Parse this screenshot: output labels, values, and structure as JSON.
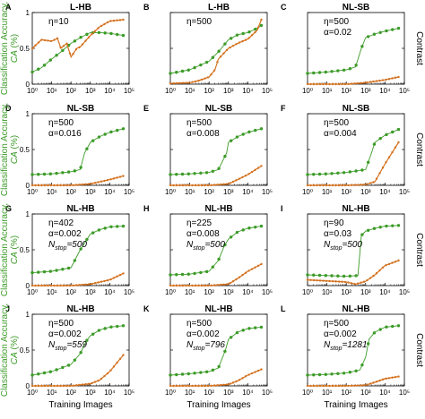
{
  "figure": {
    "ylabel_left_line1": "Classification Accuracy,",
    "ylabel_left_line2": "CA",
    "ylabel_left_unit": "(%)",
    "ylabel_right": "Contrast",
    "xlabel": "Training Images",
    "colors": {
      "accuracy": "#3c9b28",
      "contrast": "#d4711e",
      "ylabel_left": "#3c9b28"
    }
  },
  "chart_data": [
    {
      "panel": "A",
      "type": "line",
      "title": "L-HB",
      "params": [
        "η=10"
      ],
      "x_scale": "log",
      "xlim": [
        1,
        100000
      ],
      "ylim_left": [
        0,
        1
      ],
      "ylim_right": [
        0,
        1
      ],
      "x_ticks": [
        "10⁰",
        "10¹",
        "10²",
        "10³",
        "10⁴",
        "10⁵"
      ],
      "y_ticks": [
        "0",
        "0.5",
        "1"
      ],
      "series": [
        {
          "name": "CA",
          "x": [
            1,
            3,
            10,
            30,
            100,
            300,
            1000,
            3000,
            10000,
            50000
          ],
          "y": [
            0.17,
            0.23,
            0.35,
            0.45,
            0.57,
            0.65,
            0.72,
            0.72,
            0.71,
            0.68
          ]
        },
        {
          "name": "Contrast",
          "x": [
            1,
            3,
            10,
            20,
            30,
            60,
            100,
            200,
            300,
            1000,
            3000,
            10000,
            50000
          ],
          "y": [
            0.5,
            0.62,
            0.6,
            0.64,
            0.5,
            0.57,
            0.38,
            0.5,
            0.52,
            0.68,
            0.8,
            0.88,
            0.9
          ]
        }
      ]
    },
    {
      "panel": "B",
      "type": "line",
      "title": "L-HB",
      "params": [
        "η=500"
      ],
      "x_scale": "log",
      "xlim": [
        1,
        100000
      ],
      "ylim_left": [
        0,
        1
      ],
      "ylim_right": [
        0,
        1
      ],
      "x_ticks": [
        "10⁰",
        "10¹",
        "10²",
        "10³",
        "10⁴",
        "10⁵"
      ],
      "y_ticks": [],
      "series": [
        {
          "name": "CA",
          "x": [
            1,
            10,
            100,
            300,
            1000,
            3000,
            10000,
            30000,
            50000
          ],
          "y": [
            0.15,
            0.2,
            0.32,
            0.45,
            0.62,
            0.69,
            0.72,
            0.78,
            0.82
          ]
        },
        {
          "name": "Contrast",
          "x": [
            1,
            10,
            30,
            100,
            200,
            300,
            1000,
            3000,
            10000,
            30000,
            50000
          ],
          "y": [
            0.01,
            0.02,
            0.05,
            0.1,
            0.2,
            0.35,
            0.5,
            0.57,
            0.63,
            0.75,
            0.9
          ]
        }
      ]
    },
    {
      "panel": "C",
      "type": "line",
      "title": "NL-SB",
      "params": [
        "η=500",
        "α=0.02"
      ],
      "x_scale": "log",
      "xlim": [
        1,
        100000
      ],
      "ylim_left": [
        0,
        1
      ],
      "ylim_right": [
        0,
        1
      ],
      "x_ticks": [
        "10⁰",
        "10¹",
        "10²",
        "10³",
        "10⁴",
        "10⁵"
      ],
      "y_ticks": [],
      "series": [
        {
          "name": "CA",
          "x": [
            1,
            10,
            100,
            300,
            600,
            1000,
            3000,
            10000,
            50000
          ],
          "y": [
            0.15,
            0.17,
            0.2,
            0.24,
            0.5,
            0.65,
            0.7,
            0.74,
            0.78
          ]
        },
        {
          "name": "Contrast",
          "x": [
            1,
            100,
            1000,
            10000,
            50000
          ],
          "y": [
            0.0,
            0.0,
            0.02,
            0.06,
            0.1
          ]
        }
      ]
    },
    {
      "panel": "D",
      "type": "line",
      "title": "NL-SB",
      "params": [
        "η=500",
        "α=0.016"
      ],
      "x_scale": "log",
      "xlim": [
        1,
        100000
      ],
      "ylim_left": [
        0,
        1
      ],
      "ylim_right": [
        0,
        1
      ],
      "x_ticks": [
        "10⁰",
        "10¹",
        "10²",
        "10³",
        "10⁴",
        "10⁵"
      ],
      "y_ticks": [
        "0",
        "0.5",
        "1"
      ],
      "series": [
        {
          "name": "CA",
          "x": [
            1,
            10,
            100,
            300,
            500,
            1000,
            3000,
            10000,
            50000
          ],
          "y": [
            0.15,
            0.16,
            0.19,
            0.22,
            0.45,
            0.6,
            0.68,
            0.74,
            0.79
          ]
        },
        {
          "name": "Contrast",
          "x": [
            1,
            100,
            1000,
            10000,
            50000
          ],
          "y": [
            0.0,
            0.0,
            0.02,
            0.08,
            0.13
          ]
        }
      ]
    },
    {
      "panel": "E",
      "type": "line",
      "title": "NL-SB",
      "params": [
        "η=500",
        "α=0.008"
      ],
      "x_scale": "log",
      "xlim": [
        1,
        100000
      ],
      "ylim_left": [
        0,
        1
      ],
      "ylim_right": [
        0,
        1
      ],
      "x_ticks": [
        "10⁰",
        "10¹",
        "10²",
        "10³",
        "10⁴",
        "10⁵"
      ],
      "y_ticks": [],
      "series": [
        {
          "name": "CA",
          "x": [
            1,
            10,
            100,
            300,
            800,
            1000,
            3000,
            10000,
            50000
          ],
          "y": [
            0.15,
            0.16,
            0.18,
            0.22,
            0.45,
            0.6,
            0.68,
            0.74,
            0.79
          ]
        },
        {
          "name": "Contrast",
          "x": [
            1,
            100,
            1000,
            3000,
            10000,
            50000
          ],
          "y": [
            0.0,
            0.0,
            0.02,
            0.08,
            0.15,
            0.27
          ]
        }
      ]
    },
    {
      "panel": "F",
      "type": "line",
      "title": "NL-SB",
      "params": [
        "η=500",
        "α=0.004"
      ],
      "x_scale": "log",
      "xlim": [
        1,
        100000
      ],
      "ylim_left": [
        0,
        1
      ],
      "ylim_right": [
        0,
        1
      ],
      "x_ticks": [
        "10⁰",
        "10¹",
        "10²",
        "10³",
        "10⁴",
        "10⁵"
      ],
      "y_ticks": [],
      "series": [
        {
          "name": "CA",
          "x": [
            1,
            10,
            100,
            1000,
            2000,
            3000,
            10000,
            50000
          ],
          "y": [
            0.15,
            0.16,
            0.18,
            0.22,
            0.45,
            0.6,
            0.7,
            0.78
          ]
        },
        {
          "name": "Contrast",
          "x": [
            1,
            100,
            1000,
            3000,
            10000,
            50000
          ],
          "y": [
            0.0,
            0.0,
            0.01,
            0.05,
            0.3,
            0.6
          ]
        }
      ]
    },
    {
      "panel": "G",
      "type": "line",
      "title": "NL-HB",
      "params": [
        "η=402",
        "α=0.002",
        "N_stop=500"
      ],
      "x_scale": "log",
      "xlim": [
        1,
        100000
      ],
      "ylim_left": [
        0,
        1
      ],
      "ylim_right": [
        0,
        1
      ],
      "x_ticks": [
        "10⁰",
        "10¹",
        "10²",
        "10³",
        "10⁴",
        "10⁵"
      ],
      "y_ticks": [
        "0",
        "0.5",
        "1"
      ],
      "series": [
        {
          "name": "CA",
          "x": [
            1,
            10,
            100,
            300,
            1000,
            3000,
            10000,
            50000
          ],
          "y": [
            0.18,
            0.2,
            0.25,
            0.5,
            0.72,
            0.78,
            0.82,
            0.83
          ]
        },
        {
          "name": "Contrast",
          "x": [
            1,
            100,
            1000,
            10000,
            50000
          ],
          "y": [
            0.0,
            0.0,
            0.02,
            0.08,
            0.17
          ]
        }
      ]
    },
    {
      "panel": "H",
      "type": "line",
      "title": "NL-HB",
      "params": [
        "η=225",
        "α=0.008",
        "N_stop=500"
      ],
      "x_scale": "log",
      "xlim": [
        1,
        100000
      ],
      "ylim_left": [
        0,
        1
      ],
      "ylim_right": [
        0,
        1
      ],
      "x_ticks": [
        "10⁰",
        "10¹",
        "10²",
        "10³",
        "10⁴",
        "10⁵"
      ],
      "y_ticks": [],
      "series": [
        {
          "name": "CA",
          "x": [
            1,
            10,
            100,
            300,
            600,
            1000,
            3000,
            10000,
            50000
          ],
          "y": [
            0.15,
            0.16,
            0.2,
            0.35,
            0.55,
            0.65,
            0.75,
            0.8,
            0.83
          ]
        },
        {
          "name": "Contrast",
          "x": [
            1,
            100,
            1000,
            3000,
            10000,
            50000
          ],
          "y": [
            0.0,
            0.0,
            0.02,
            0.1,
            0.2,
            0.3
          ]
        }
      ]
    },
    {
      "panel": "I",
      "type": "line",
      "title": "NL-HB",
      "params": [
        "η=90",
        "α=0.03",
        "N_stop=500"
      ],
      "x_scale": "log",
      "xlim": [
        1,
        100000
      ],
      "ylim_left": [
        0,
        1
      ],
      "ylim_right": [
        0,
        1
      ],
      "x_ticks": [
        "10⁰",
        "10¹",
        "10²",
        "10³",
        "10⁴",
        "10⁵"
      ],
      "y_ticks": [],
      "series": [
        {
          "name": "CA",
          "x": [
            1,
            10,
            100,
            400,
            600,
            1000,
            3000,
            10000,
            50000
          ],
          "y": [
            0.15,
            0.14,
            0.13,
            0.14,
            0.7,
            0.76,
            0.8,
            0.83,
            0.84
          ]
        },
        {
          "name": "Contrast",
          "x": [
            1,
            100,
            300,
            1000,
            3000,
            10000,
            50000
          ],
          "y": [
            0.08,
            0.05,
            0.02,
            0.06,
            0.15,
            0.28,
            0.35
          ]
        }
      ]
    },
    {
      "panel": "J",
      "type": "line",
      "title": "NL-HB",
      "params": [
        "η=500",
        "α=0.002",
        "N_stop=559"
      ],
      "x_scale": "log",
      "xlim": [
        1,
        100000
      ],
      "ylim_left": [
        0,
        1
      ],
      "ylim_right": [
        0,
        1
      ],
      "x_ticks": [
        "10⁰",
        "10¹",
        "10²",
        "10³",
        "10⁴",
        "10⁵"
      ],
      "y_ticks": [
        "0",
        "0.5",
        "1"
      ],
      "series": [
        {
          "name": "CA",
          "x": [
            1,
            10,
            100,
            300,
            600,
            1000,
            3000,
            10000,
            50000
          ],
          "y": [
            0.15,
            0.2,
            0.3,
            0.45,
            0.62,
            0.7,
            0.78,
            0.82,
            0.84
          ]
        },
        {
          "name": "Contrast",
          "x": [
            1,
            100,
            1000,
            3000,
            10000,
            50000
          ],
          "y": [
            0.0,
            0.0,
            0.03,
            0.08,
            0.2,
            0.43
          ]
        }
      ]
    },
    {
      "panel": "K",
      "type": "line",
      "title": "NL-HB",
      "params": [
        "η=500",
        "α=0.002",
        "N_stop=796"
      ],
      "x_scale": "log",
      "xlim": [
        1,
        100000
      ],
      "ylim_left": [
        0,
        1
      ],
      "ylim_right": [
        0,
        1
      ],
      "x_ticks": [
        "10⁰",
        "10¹",
        "10²",
        "10³",
        "10⁴",
        "10⁵"
      ],
      "y_ticks": [],
      "series": [
        {
          "name": "CA",
          "x": [
            1,
            10,
            100,
            300,
            700,
            1000,
            3000,
            10000,
            50000
          ],
          "y": [
            0.15,
            0.17,
            0.2,
            0.25,
            0.5,
            0.65,
            0.75,
            0.8,
            0.82
          ]
        },
        {
          "name": "Contrast",
          "x": [
            1,
            100,
            1000,
            3000,
            10000,
            50000
          ],
          "y": [
            0.0,
            0.0,
            0.02,
            0.07,
            0.15,
            0.23
          ]
        }
      ]
    },
    {
      "panel": "L",
      "type": "line",
      "title": "NL-HB",
      "params": [
        "η=500",
        "α=0.002",
        "N_stop=1281"
      ],
      "x_scale": "log",
      "xlim": [
        1,
        100000
      ],
      "ylim_left": [
        0,
        1
      ],
      "ylim_right": [
        0,
        1
      ],
      "x_ticks": [
        "10⁰",
        "10¹",
        "10²",
        "10³",
        "10⁴",
        "10⁵"
      ],
      "y_ticks": [],
      "series": [
        {
          "name": "CA",
          "x": [
            1,
            10,
            100,
            500,
            1000,
            1500,
            3000,
            10000,
            50000
          ],
          "y": [
            0.15,
            0.16,
            0.18,
            0.22,
            0.4,
            0.65,
            0.75,
            0.82,
            0.84
          ]
        },
        {
          "name": "Contrast",
          "x": [
            1,
            100,
            1000,
            3000,
            10000,
            50000
          ],
          "y": [
            0.0,
            0.0,
            0.01,
            0.05,
            0.1,
            0.13
          ]
        }
      ]
    }
  ]
}
